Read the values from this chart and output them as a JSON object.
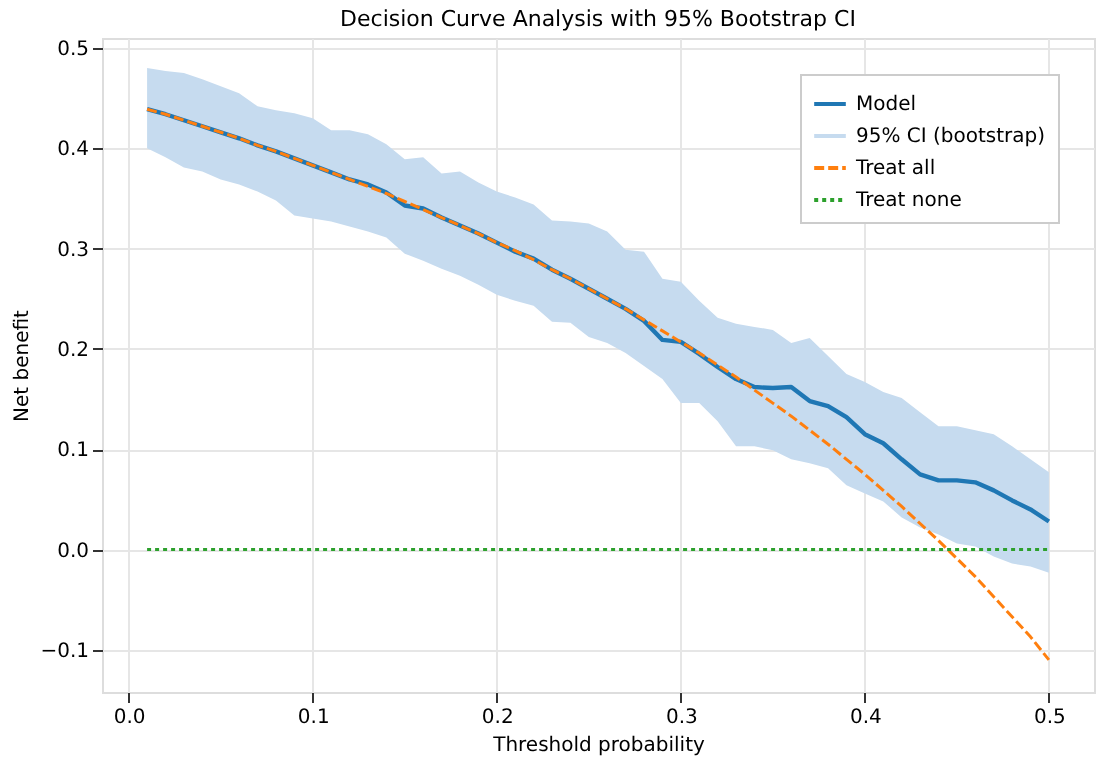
{
  "chart_data": {
    "type": "line",
    "title": "Decision Curve Analysis with 95% Bootstrap CI",
    "xlabel": "Threshold probability",
    "ylabel": "Net benefit",
    "annotations": [
      "95% CI (bootstrap)"
    ],
    "x": [
      0.01,
      0.02,
      0.03,
      0.04,
      0.05,
      0.06,
      0.07,
      0.08,
      0.09,
      0.1,
      0.11,
      0.12,
      0.13,
      0.14,
      0.15,
      0.16,
      0.17,
      0.18,
      0.19,
      0.2,
      0.21,
      0.22,
      0.23,
      0.24,
      0.25,
      0.26,
      0.27,
      0.28,
      0.29,
      0.3,
      0.31,
      0.32,
      0.33,
      0.34,
      0.35,
      0.36,
      0.37,
      0.38,
      0.39,
      0.4,
      0.41,
      0.42,
      0.43,
      0.44,
      0.45,
      0.46,
      0.47,
      0.48,
      0.49,
      0.5
    ],
    "series": [
      {
        "name": "Model",
        "type": "line",
        "line_style": "solid",
        "color": "#1f77b4",
        "values": [
          0.439,
          0.434,
          0.428,
          0.422,
          0.416,
          0.41,
          0.403,
          0.397,
          0.39,
          0.383,
          0.376,
          0.369,
          0.364,
          0.356,
          0.343,
          0.34,
          0.331,
          0.323,
          0.315,
          0.306,
          0.297,
          0.29,
          0.279,
          0.27,
          0.26,
          0.25,
          0.24,
          0.228,
          0.209,
          0.207,
          0.195,
          0.182,
          0.17,
          0.162,
          0.161,
          0.162,
          0.148,
          0.143,
          0.132,
          0.115,
          0.106,
          0.09,
          0.075,
          0.069,
          0.069,
          0.067,
          0.059,
          0.049,
          0.04,
          0.028
        ],
        "lower": [
          0.4,
          0.391,
          0.381,
          0.377,
          0.369,
          0.364,
          0.357,
          0.348,
          0.333,
          0.33,
          0.327,
          0.322,
          0.317,
          0.311,
          0.295,
          0.288,
          0.28,
          0.273,
          0.264,
          0.254,
          0.248,
          0.243,
          0.227,
          0.226,
          0.212,
          0.206,
          0.196,
          0.183,
          0.17,
          0.146,
          0.146,
          0.128,
          0.103,
          0.103,
          0.099,
          0.09,
          0.086,
          0.081,
          0.064,
          0.056,
          0.048,
          0.032,
          0.022,
          0.015,
          0.006,
          0.003,
          -0.007,
          -0.014,
          -0.017,
          -0.023
        ],
        "upper": [
          0.48,
          0.477,
          0.475,
          0.469,
          0.462,
          0.455,
          0.442,
          0.438,
          0.435,
          0.43,
          0.418,
          0.418,
          0.414,
          0.404,
          0.389,
          0.391,
          0.375,
          0.377,
          0.366,
          0.357,
          0.351,
          0.344,
          0.328,
          0.327,
          0.325,
          0.317,
          0.299,
          0.297,
          0.27,
          0.267,
          0.248,
          0.231,
          0.225,
          0.222,
          0.219,
          0.206,
          0.211,
          0.193,
          0.175,
          0.167,
          0.157,
          0.151,
          0.137,
          0.123,
          0.123,
          0.119,
          0.115,
          0.103,
          0.09,
          0.077
        ]
      },
      {
        "name": "Treat all",
        "type": "line",
        "line_style": "dashed",
        "color": "#ff7f0e",
        "values": [
          0.439,
          0.434,
          0.428,
          0.422,
          0.416,
          0.41,
          0.403,
          0.397,
          0.39,
          0.383,
          0.376,
          0.369,
          0.362,
          0.355,
          0.347,
          0.339,
          0.331,
          0.323,
          0.315,
          0.306,
          0.298,
          0.289,
          0.279,
          0.27,
          0.26,
          0.25,
          0.24,
          0.229,
          0.218,
          0.207,
          0.196,
          0.184,
          0.172,
          0.159,
          0.146,
          0.133,
          0.119,
          0.105,
          0.09,
          0.075,
          0.059,
          0.043,
          0.026,
          0.009,
          -0.009,
          -0.027,
          -0.047,
          -0.067,
          -0.087,
          -0.11
        ]
      },
      {
        "name": "Treat none",
        "type": "line",
        "line_style": "dotted",
        "color": "#2ca02c",
        "values": [
          0,
          0,
          0,
          0,
          0,
          0,
          0,
          0,
          0,
          0,
          0,
          0,
          0,
          0,
          0,
          0,
          0,
          0,
          0,
          0,
          0,
          0,
          0,
          0,
          0,
          0,
          0,
          0,
          0,
          0,
          0,
          0,
          0,
          0,
          0,
          0,
          0,
          0,
          0,
          0,
          0,
          0,
          0,
          0,
          0,
          0,
          0,
          0,
          0,
          0
        ]
      }
    ],
    "xlim": [
      -0.0145,
      0.5245
    ],
    "ylim": [
      -0.142,
      0.51
    ],
    "xticks": [
      {
        "value": 0,
        "label": "0.0"
      },
      0.1,
      0.2,
      0.3,
      0.4,
      0.5
    ],
    "yticks": [
      -0.1,
      {
        "value": 0,
        "label": "0.0"
      },
      0.1,
      0.2,
      0.3,
      0.4,
      0.5
    ],
    "grid": true,
    "legend": "top right"
  }
}
